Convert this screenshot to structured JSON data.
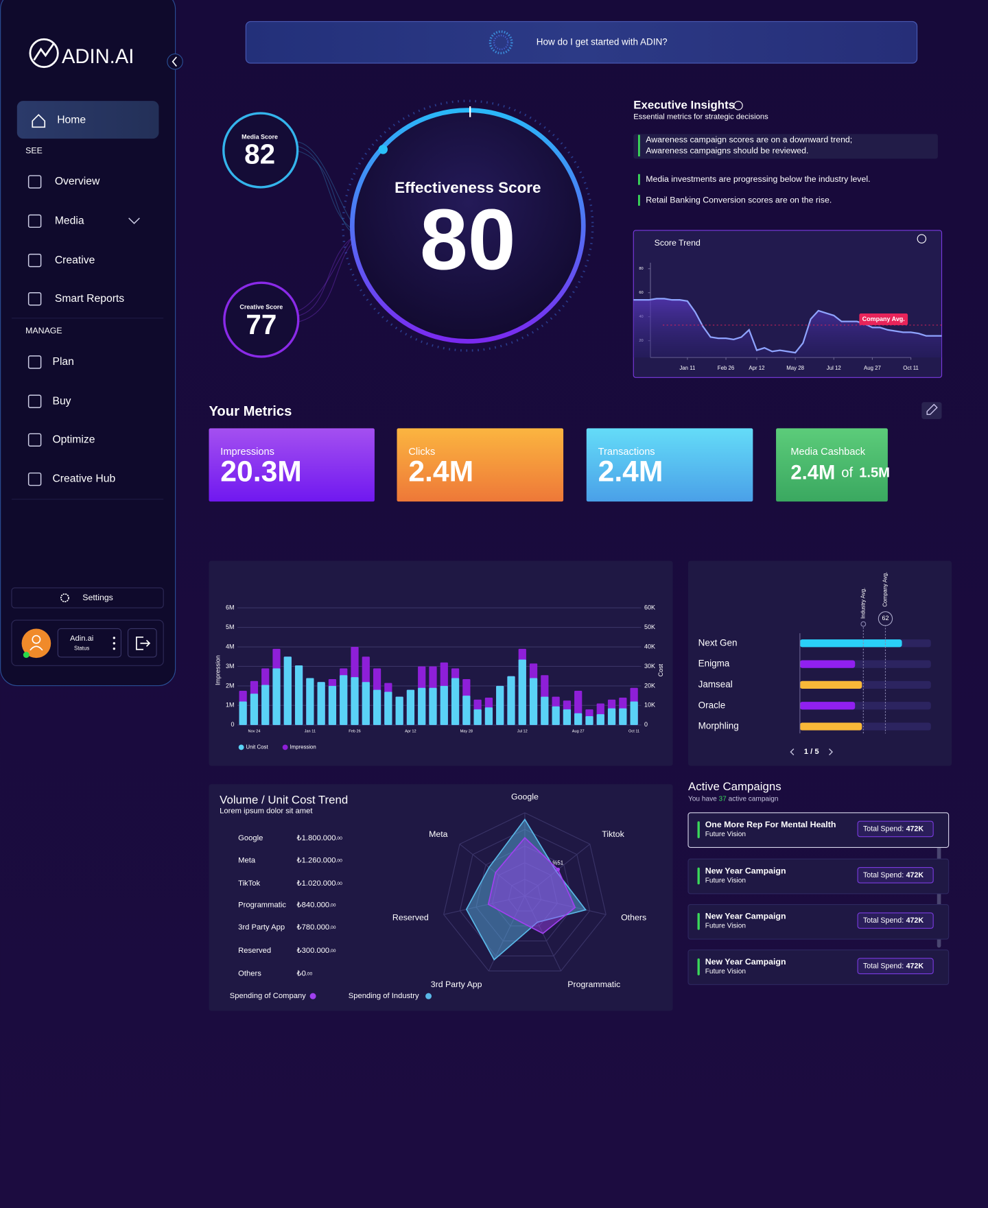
{
  "sidebar": {
    "logo": "ADIN.AI",
    "home": "Home",
    "see": "SEE",
    "see_items": [
      "Overview",
      "Media",
      "Creative",
      "Smart Reports"
    ],
    "manage": "MANAGE",
    "manage_items": [
      "Plan",
      "Buy",
      "Optimize",
      "Creative Hub"
    ],
    "settings": "Settings",
    "user": {
      "name": "Adin.ai",
      "status": "Status"
    }
  },
  "search": {
    "placeholder": "How do I get started with ADIN?"
  },
  "scores": {
    "media": {
      "label": "Media Score",
      "value": 82
    },
    "creative": {
      "label": "Creative Score",
      "value": 77
    },
    "effectiveness": {
      "label": "Effectiveness Score",
      "value": 80
    }
  },
  "insights": {
    "title": "Executive Insights",
    "subtitle": "Essential metrics for strategic decisions",
    "items": [
      [
        "Awareness campaign scores are on a downward trend;",
        "Awareness campaigns should be reviewed."
      ],
      [
        "Media investments are progressing below the industry level."
      ],
      [
        "Retail Banking Conversion scores are on the rise."
      ]
    ]
  },
  "score_trend": {
    "type": "line",
    "title": "Score Trend",
    "categories": [
      null,
      null,
      null,
      null,
      null,
      null,
      null,
      "Jan 11",
      null,
      null,
      null,
      null,
      "Feb 26",
      null,
      null,
      null,
      "Apr 12",
      null,
      null,
      null,
      null,
      "May 28",
      null,
      null,
      null,
      null,
      "Jul 12",
      null,
      null,
      null,
      null,
      "Aug 27",
      null,
      null,
      null,
      null,
      "Oct 11",
      null,
      null,
      null,
      null
    ],
    "values": [
      54,
      54,
      54,
      55,
      55,
      54,
      54,
      53,
      44,
      32,
      23,
      22,
      22,
      21,
      23,
      29,
      12,
      14,
      11,
      12,
      11,
      10,
      18,
      38,
      45,
      43,
      41,
      36,
      36,
      36,
      34,
      31,
      31,
      29,
      28,
      27,
      27,
      26,
      24,
      24,
      24
    ],
    "color": "#8fa4ff",
    "ylim": [
      6,
      85
    ],
    "yticks": [
      20,
      40,
      60,
      80
    ],
    "reference": {
      "label": "Company Avg.",
      "value": 33,
      "color": "#e8245a"
    }
  },
  "metrics": {
    "title": "Your Metrics",
    "cards": [
      {
        "label": "Impressions",
        "value": "20.3M",
        "colors": [
          "#a450f0",
          "#7018f0"
        ]
      },
      {
        "label": "Clicks",
        "value": "2.4M",
        "colors": [
          "#fbb540",
          "#ee7838"
        ]
      },
      {
        "label": "Transactions",
        "value": "2.4M",
        "colors": [
          "#64dcf8",
          "#4aa0e8"
        ]
      },
      {
        "label": "Media Cashback",
        "value": "2.4M",
        "of": "of",
        "total": "1.5M",
        "colors": [
          "#5ccc7a",
          "#3aa860"
        ]
      }
    ]
  },
  "volume_chart": {
    "type": "bar",
    "categories": [
      null,
      "Nov 24",
      null,
      null,
      null,
      null,
      "Jan 11",
      null,
      null,
      null,
      "Feb 26",
      null,
      null,
      null,
      null,
      "Apr 12",
      null,
      null,
      null,
      null,
      "May 28",
      null,
      null,
      null,
      null,
      "Jul 12",
      null,
      null,
      null,
      null,
      "Aug 27",
      null,
      null,
      null,
      null,
      "Oct 11"
    ],
    "ylabel": "Impression",
    "y2label": "Cost",
    "ylim": [
      0,
      6000000
    ],
    "yticks": [
      0,
      {
        "value": 1000000,
        "label": "1M"
      },
      {
        "value": 2000000,
        "label": "2M"
      },
      {
        "value": 3000000,
        "label": "3M"
      },
      {
        "value": 4000000,
        "label": "4M"
      },
      {
        "value": 5000000,
        "label": "5M"
      },
      {
        "value": 6000000,
        "label": "6M"
      }
    ],
    "y2lim": [
      0,
      60000
    ],
    "y2ticks": [
      0,
      {
        "value": 10000,
        "label": "10K"
      },
      {
        "value": 20000,
        "label": "20K"
      },
      {
        "value": 30000,
        "label": "30K"
      },
      {
        "value": 40000,
        "label": "40K"
      },
      {
        "value": 50000,
        "label": "50K"
      },
      {
        "value": 60000,
        "label": "60K"
      }
    ],
    "grid": true,
    "series": [
      {
        "name": "Unit Cost",
        "color": "#5ad2f6",
        "axis": "y2",
        "values": [
          12000,
          16000,
          20500,
          29000,
          35000,
          30500,
          24000,
          22000,
          20000,
          25500,
          24500,
          22000,
          18000,
          17000,
          14500,
          18000,
          19000,
          19000,
          20000,
          24000,
          15000,
          8000,
          9000,
          20000,
          25000,
          33500,
          24000,
          14500,
          9500,
          8000,
          6000,
          4500,
          5500,
          8500,
          8500,
          12000
        ]
      },
      {
        "name": "Impression",
        "color": "#8e1fd8",
        "values": [
          1750000,
          2250000,
          2900000,
          3900000,
          3500000,
          3050000,
          2400000,
          2200000,
          2350000,
          2900000,
          4000000,
          3500000,
          2900000,
          2150000,
          1450000,
          1800000,
          3000000,
          3000000,
          3200000,
          2900000,
          2350000,
          1300000,
          1400000,
          2000000,
          2500000,
          3900000,
          3150000,
          2550000,
          1450000,
          1250000,
          1750000,
          800000,
          1100000,
          1300000,
          1400000,
          1900000
        ]
      }
    ]
  },
  "ranking": {
    "type": "bar",
    "categories": [
      "Next Gen",
      "Enigma",
      "Jamseal",
      "Oracle",
      "Morphling"
    ],
    "values": [
      74,
      40,
      45,
      40,
      45
    ],
    "colors": [
      "#2ad0f8",
      "#9020f0",
      "#f8b838",
      "#9020f0",
      "#f8b838"
    ],
    "xlim": [
      0,
      95
    ],
    "references": [
      {
        "label": "Industry Avg.",
        "value": 46
      },
      {
        "label": "Company Avg.",
        "value": 62
      }
    ],
    "pager": "1 / 5"
  },
  "radar": {
    "type": "radar",
    "title": "Volume / Unit Cost Trend",
    "subtitle": "Lorem ipsum dolor sit amet",
    "categories": [
      "Google",
      "Tiktok",
      "Others",
      "Programmatic",
      "3rd Party App",
      "Reserved",
      "Meta"
    ],
    "rlim": [
      0,
      100
    ],
    "series": [
      {
        "name": "Spending of Company",
        "color": "#a040f0",
        "values": [
          70,
          51,
          62,
          50,
          30,
          45,
          45
        ]
      },
      {
        "name": "Spending of Industry",
        "color": "#5ab8e8",
        "values": [
          92,
          48,
          75,
          35,
          85,
          72,
          55
        ]
      }
    ],
    "annotation": "%51",
    "table": [
      {
        "name": "Google",
        "amount": "₺1.800.000",
        "decimals": ",00"
      },
      {
        "name": "Meta",
        "amount": "₺1.260.000",
        "decimals": ",00"
      },
      {
        "name": "TikTok",
        "amount": "₺1.020.000",
        "decimals": ",00"
      },
      {
        "name": "Programmatic",
        "amount": "₺840.000",
        "decimals": ",00"
      },
      {
        "name": "3rd Party App",
        "amount": "₺780.000",
        "decimals": ",00"
      },
      {
        "name": "Reserved",
        "amount": "₺300.000",
        "decimals": ",00"
      },
      {
        "name": "Others",
        "amount": "₺0",
        "decimals": ",00"
      }
    ]
  },
  "campaigns": {
    "title": "Active Campaigns",
    "summary": [
      "You have ",
      "37",
      " active campaign"
    ],
    "items": [
      {
        "name": "One More Rep For Mental Health",
        "client": "Future Vision",
        "spend_label": "Total Spend:",
        "spend": "472K"
      },
      {
        "name": "New Year Campaign",
        "client": "Future Vision",
        "spend_label": "Total Spend:",
        "spend": "472K"
      },
      {
        "name": "New Year Campaign",
        "client": "Future Vision",
        "spend_label": "Total Spend:",
        "spend": "472K"
      },
      {
        "name": "New Year Campaign",
        "client": "Future Vision",
        "spend_label": "Total Spend:",
        "spend": "472K"
      }
    ]
  }
}
